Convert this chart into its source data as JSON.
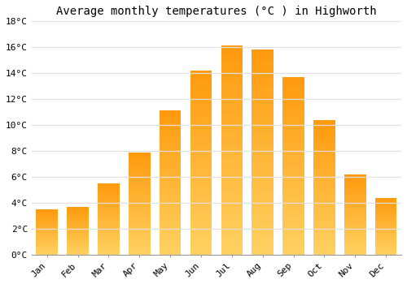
{
  "months": [
    "Jan",
    "Feb",
    "Mar",
    "Apr",
    "May",
    "Jun",
    "Jul",
    "Aug",
    "Sep",
    "Oct",
    "Nov",
    "Dec"
  ],
  "temperatures": [
    3.5,
    3.7,
    5.5,
    7.9,
    11.1,
    14.2,
    16.1,
    15.8,
    13.7,
    10.4,
    6.2,
    4.4
  ],
  "bar_color": "#FFA500",
  "bar_color_light": "#FFD060",
  "title": "Average monthly temperatures (°C ) in Highworth",
  "ylim": [
    0,
    18
  ],
  "yticks": [
    0,
    2,
    4,
    6,
    8,
    10,
    12,
    14,
    16,
    18
  ],
  "ytick_labels": [
    "0°C",
    "2°C",
    "4°C",
    "6°C",
    "8°C",
    "10°C",
    "12°C",
    "14°C",
    "16°C",
    "18°C"
  ],
  "background_color": "#FFFFFF",
  "grid_color": "#E0E0E0",
  "title_fontsize": 10,
  "tick_fontsize": 8,
  "bar_width": 0.7
}
